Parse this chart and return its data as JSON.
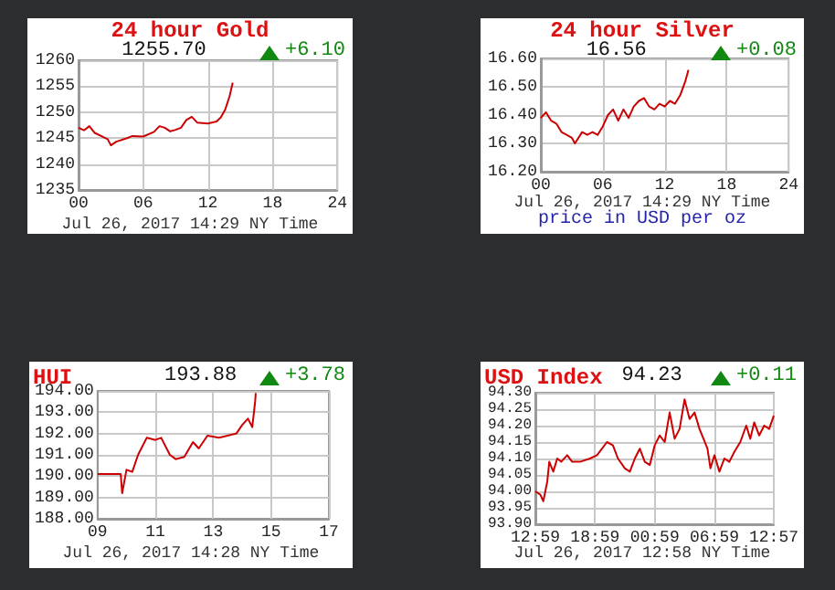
{
  "chart_data": [
    {
      "type": "line",
      "title": "24 hour Gold",
      "subtitle": "1255.70",
      "xlabel": "Jul 26, 2017 14:29 NY Time",
      "annotations": [
        "+6.10"
      ],
      "grid": true,
      "xlim": [
        0,
        24
      ],
      "xticks": [
        {
          "value": 0,
          "label": "00"
        },
        {
          "value": 6,
          "label": "06"
        },
        12,
        18,
        24
      ],
      "ylim": [
        1235,
        1260
      ],
      "yticks": [
        1235,
        1240,
        1245,
        1250,
        1255,
        1260
      ],
      "series": [
        {
          "color": "#cc0000",
          "x": [
            0,
            0.5,
            1,
            1.5,
            2,
            2.7,
            3,
            3.5,
            4.5,
            5,
            6,
            7,
            7.5,
            8,
            8.5,
            9,
            9.5,
            10,
            10.5,
            11,
            12,
            12.8,
            13.2,
            13.6,
            14,
            14.3
          ],
          "values": [
            1247,
            1246.5,
            1247.3,
            1246,
            1245.5,
            1244.8,
            1243.6,
            1244.3,
            1245,
            1245.4,
            1245.3,
            1246.2,
            1247.3,
            1247,
            1246.3,
            1246.6,
            1247,
            1248.5,
            1249.1,
            1248,
            1247.8,
            1248.2,
            1249,
            1250.5,
            1253,
            1255.7
          ]
        }
      ]
    },
    {
      "type": "line",
      "title": "24 hour Silver",
      "subtitle": "16.56",
      "xlabel": "Jul 26, 2017 14:29 NY Time",
      "annotations": [
        "+0.08",
        "price in USD per oz"
      ],
      "grid": true,
      "xlim": [
        0,
        24
      ],
      "xticks": [
        {
          "value": 0,
          "label": "00"
        },
        {
          "value": 6,
          "label": "06"
        },
        12,
        18,
        24
      ],
      "ylim": [
        16.2,
        16.6
      ],
      "yticks": [
        {
          "value": 16.2,
          "label": "16.20"
        },
        {
          "value": 16.3,
          "label": "16.30"
        },
        {
          "value": 16.4,
          "label": "16.40"
        },
        {
          "value": 16.5,
          "label": "16.50"
        },
        {
          "value": 16.6,
          "label": "16.60"
        }
      ],
      "series": [
        {
          "color": "#cc0000",
          "x": [
            0,
            0.5,
            1,
            1.5,
            2,
            2.5,
            3,
            3.3,
            4,
            4.5,
            5,
            5.5,
            6,
            6.5,
            7,
            7.5,
            8,
            8.5,
            9,
            9.5,
            10,
            10.5,
            11,
            11.5,
            12,
            12.5,
            13,
            13.5,
            14,
            14.3
          ],
          "values": [
            16.39,
            16.41,
            16.38,
            16.37,
            16.34,
            16.33,
            16.32,
            16.3,
            16.34,
            16.33,
            16.34,
            16.33,
            16.36,
            16.4,
            16.42,
            16.38,
            16.42,
            16.39,
            16.43,
            16.45,
            16.46,
            16.43,
            16.42,
            16.44,
            16.43,
            16.45,
            16.44,
            16.47,
            16.52,
            16.56
          ]
        }
      ]
    },
    {
      "type": "line",
      "title": "HUI",
      "subtitle": "193.88",
      "xlabel": "Jul 26, 2017 14:28 NY Time",
      "annotations": [
        "+3.78"
      ],
      "grid": true,
      "xlim": [
        9,
        17
      ],
      "xticks": [
        {
          "value": 9,
          "label": "09"
        },
        11,
        13,
        15,
        17
      ],
      "ylim": [
        188,
        194
      ],
      "yticks": [
        {
          "value": 188,
          "label": "188.00"
        },
        {
          "value": 189,
          "label": "189.00"
        },
        {
          "value": 190,
          "label": "190.00"
        },
        {
          "value": 191,
          "label": "191.00"
        },
        {
          "value": 192,
          "label": "192.00"
        },
        {
          "value": 193,
          "label": "193.00"
        },
        {
          "value": 194,
          "label": "194.00"
        }
      ],
      "series": [
        {
          "color": "#cc0000",
          "x": [
            9,
            9.8,
            9.85,
            10,
            10.2,
            10.4,
            10.7,
            11,
            11.2,
            11.5,
            11.7,
            12,
            12.3,
            12.5,
            12.8,
            13.2,
            13.5,
            13.8,
            14,
            14.2,
            14.35,
            14.45,
            14.47
          ],
          "values": [
            190.1,
            190.1,
            189.2,
            190.3,
            190.2,
            191,
            191.8,
            191.7,
            191.8,
            191,
            190.8,
            190.9,
            191.6,
            191.3,
            191.9,
            191.8,
            191.9,
            192,
            192.4,
            192.7,
            192.3,
            193.5,
            193.9
          ]
        }
      ]
    },
    {
      "type": "line",
      "title": "USD Index",
      "subtitle": "94.23",
      "xlabel": "Jul 26, 2017 12:58 NY Time",
      "annotations": [
        "+0.11"
      ],
      "grid": true,
      "xlim": [
        "2017-07-25T12:59",
        "2017-07-26T12:57"
      ],
      "xticks": [
        {
          "value": "2017-07-25T12:59",
          "label": "12:59"
        },
        {
          "value": "2017-07-25T18:59",
          "label": "18:59"
        },
        {
          "value": "2017-07-26T00:59",
          "label": "00:59"
        },
        {
          "value": "2017-07-26T06:59",
          "label": "06:59"
        },
        {
          "value": "2017-07-26T12:57",
          "label": "12:57"
        }
      ],
      "ylim": [
        93.9,
        94.3
      ],
      "yticks": [
        {
          "value": 93.9,
          "label": "93.90"
        },
        93.95,
        {
          "value": 94,
          "label": "94.00"
        },
        94.05,
        {
          "value": 94.1,
          "label": "94.10"
        },
        94.15,
        {
          "value": 94.2,
          "label": "94.20"
        },
        94.25,
        {
          "value": 94.3,
          "label": "94.30"
        }
      ],
      "series": [
        {
          "color": "#cc0000",
          "x": [
            "2017-07-25T12:59",
            "2017-07-25T13:29",
            "2017-07-25T13:47",
            "2017-07-25T14:11",
            "2017-07-25T14:23",
            "2017-07-25T14:47",
            "2017-07-25T15:11",
            "2017-07-25T15:35",
            "2017-07-25T16:11",
            "2017-07-25T16:41",
            "2017-07-25T17:29",
            "2017-07-25T18:29",
            "2017-07-25T19:11",
            "2017-07-25T20:11",
            "2017-07-25T20:47",
            "2017-07-25T21:17",
            "2017-07-25T21:59",
            "2017-07-25T22:29",
            "2017-07-25T22:59",
            "2017-07-25T23:29",
            "2017-07-25T23:59",
            "2017-07-26T00:29",
            "2017-07-26T00:59",
            "2017-07-26T01:29",
            "2017-07-26T01:59",
            "2017-07-26T02:29",
            "2017-07-26T02:59",
            "2017-07-26T03:29",
            "2017-07-26T03:59",
            "2017-07-26T04:29",
            "2017-07-26T04:59",
            "2017-07-26T05:29",
            "2017-07-26T06:17",
            "2017-07-26T06:35",
            "2017-07-26T06:59",
            "2017-07-26T07:29",
            "2017-07-26T07:59",
            "2017-07-26T08:29",
            "2017-07-26T08:59",
            "2017-07-26T09:35",
            "2017-07-26T10:11",
            "2017-07-26T10:35",
            "2017-07-26T10:59",
            "2017-07-26T11:29",
            "2017-07-26T11:59",
            "2017-07-26T12:29",
            "2017-07-26T12:57"
          ],
          "values": [
            94,
            93.99,
            93.97,
            94.03,
            94.09,
            94.06,
            94.1,
            94.09,
            94.11,
            94.09,
            94.09,
            94.1,
            94.11,
            94.15,
            94.14,
            94.1,
            94.07,
            94.06,
            94.1,
            94.13,
            94.09,
            94.08,
            94.14,
            94.17,
            94.15,
            94.24,
            94.16,
            94.19,
            94.28,
            94.22,
            94.24,
            94.19,
            94.13,
            94.07,
            94.11,
            94.06,
            94.1,
            94.09,
            94.12,
            94.15,
            94.2,
            94.16,
            94.21,
            94.17,
            94.2,
            94.19,
            94.23
          ]
        }
      ]
    }
  ]
}
